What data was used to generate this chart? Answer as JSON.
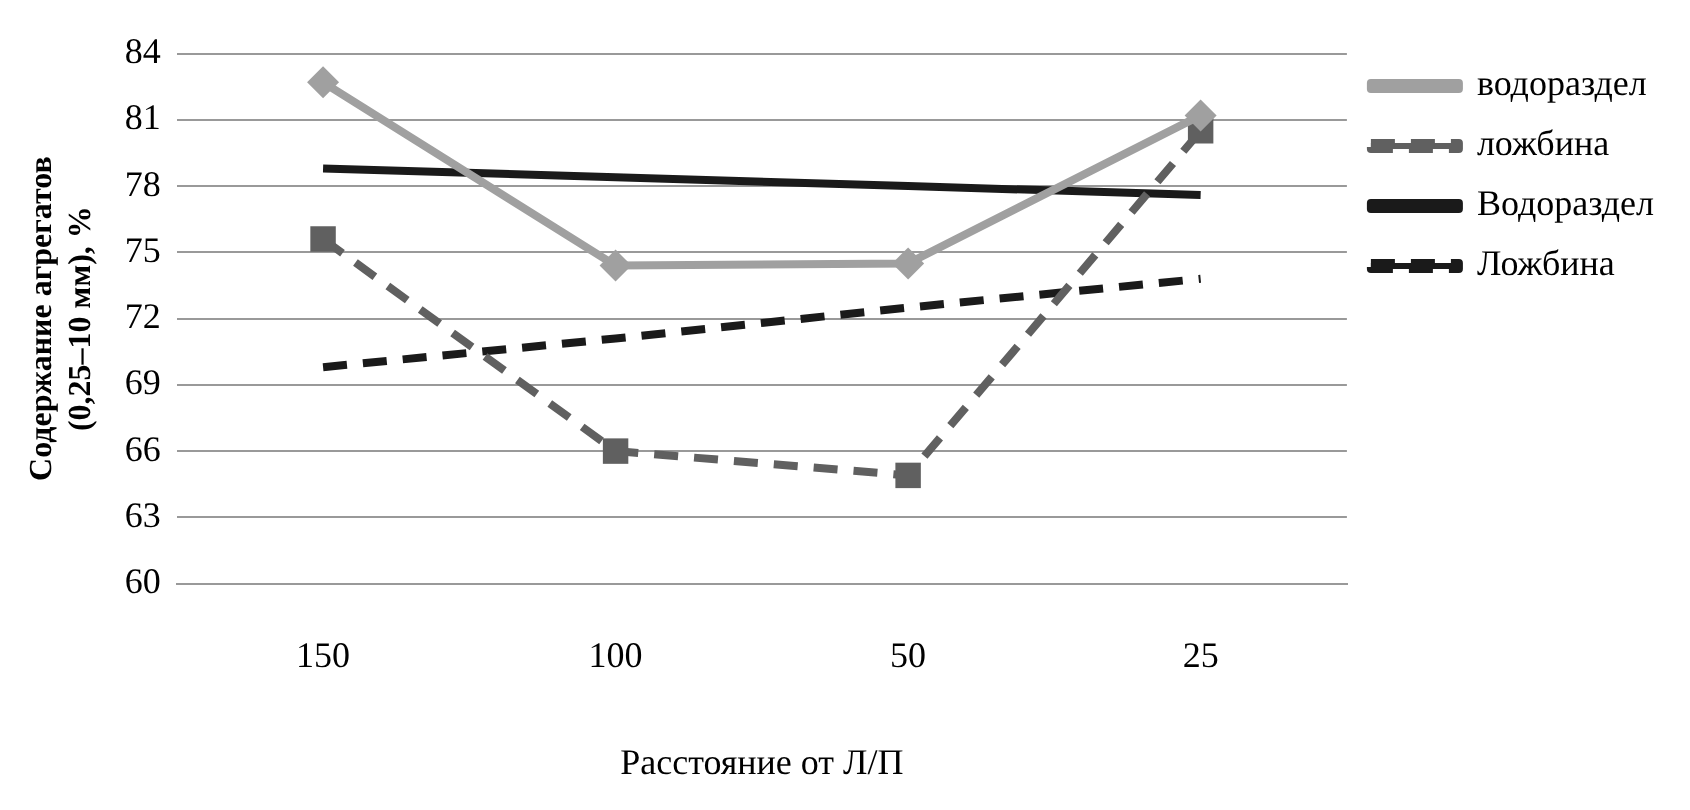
{
  "chart_data": {
    "type": "line",
    "xlabel": "Расстояние от Л/П",
    "ylabel": "Содержание агрегатов\n(0,25–10 мм), %",
    "categories": [
      "150",
      "100",
      "50",
      "25"
    ],
    "series": [
      {
        "name": "водораздел",
        "color": "#a0a0a0",
        "marker": "diamond",
        "line_style": "solid",
        "values": [
          82.7,
          74.4,
          74.5,
          81.2
        ]
      },
      {
        "name": "ложбина",
        "color": "#606060",
        "marker": "square",
        "line_style": "dashed",
        "values": [
          75.6,
          66.0,
          64.9,
          80.5
        ]
      },
      {
        "name": "Водораздел",
        "color": "#1a1a1a",
        "marker": "none",
        "line_style": "solid",
        "values": [
          78.8,
          78.4,
          78.0,
          77.6
        ]
      },
      {
        "name": "Ложбина",
        "color": "#1a1a1a",
        "marker": "none",
        "line_style": "dashed",
        "values": [
          69.8,
          71.1,
          72.5,
          73.8
        ]
      }
    ],
    "ylim": [
      60,
      84
    ],
    "yticks": [
      60,
      63,
      66,
      69,
      72,
      75,
      78,
      81,
      84
    ],
    "grid": "y",
    "legend": "top right"
  }
}
